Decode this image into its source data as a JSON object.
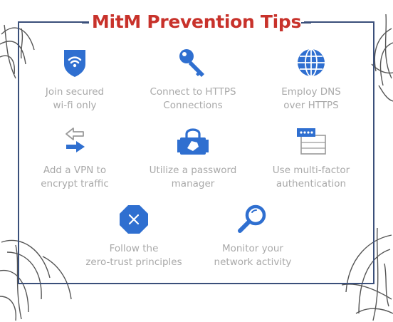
{
  "title": "MitM Prevention Tips",
  "colors": {
    "title": "#c8322b",
    "frame": "#3a4f7a",
    "icon_blue": "#2f6fd0",
    "label_gray": "#a9a9a9"
  },
  "tips": [
    {
      "label": "Join secured\nwi-fi only",
      "icon": "wifi-shield-icon"
    },
    {
      "label": "Connect to HTTPS\nConnections",
      "icon": "key-icon"
    },
    {
      "label": "Employ DNS\nover HTTPS",
      "icon": "globe-icon"
    },
    {
      "label": "Add a VPN to\nencrypt traffic",
      "icon": "vpn-arrows-icon"
    },
    {
      "label": "Utilize a password\nmanager",
      "icon": "password-lock-icon"
    },
    {
      "label": "Use multi-factor\nauthentication",
      "icon": "password-window-icon"
    },
    {
      "label": "Follow the\nzero-trust principles",
      "icon": "octagon-x-icon"
    },
    {
      "label": "Monitor your\nnetwork activity",
      "icon": "magnifier-icon"
    }
  ]
}
